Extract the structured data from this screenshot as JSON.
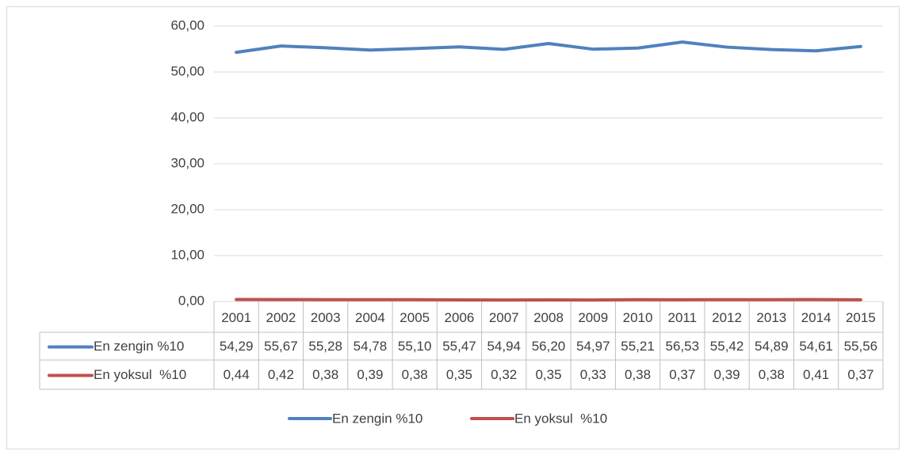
{
  "chart_data": {
    "type": "line",
    "categories": [
      "2001",
      "2002",
      "2003",
      "2004",
      "2005",
      "2006",
      "2007",
      "2008",
      "2009",
      "2010",
      "2011",
      "2012",
      "2013",
      "2014",
      "2015"
    ],
    "series": [
      {
        "name": "En zengin %10",
        "color": "#4f81bd",
        "values": [
          54.29,
          55.67,
          55.28,
          54.78,
          55.1,
          55.47,
          54.94,
          56.2,
          54.97,
          55.21,
          56.53,
          55.42,
          54.89,
          54.61,
          55.56
        ],
        "value_labels": [
          "54,29",
          "55,67",
          "55,28",
          "54,78",
          "55,10",
          "55,47",
          "54,94",
          "56,20",
          "54,97",
          "55,21",
          "56,53",
          "55,42",
          "54,89",
          "54,61",
          "55,56"
        ]
      },
      {
        "name": "En yoksul  %10",
        "color": "#c0504d",
        "values": [
          0.44,
          0.42,
          0.38,
          0.39,
          0.38,
          0.35,
          0.32,
          0.35,
          0.33,
          0.38,
          0.37,
          0.39,
          0.38,
          0.41,
          0.37
        ],
        "value_labels": [
          "0,44",
          "0,42",
          "0,38",
          "0,39",
          "0,38",
          "0,35",
          "0,32",
          "0,35",
          "0,33",
          "0,38",
          "0,37",
          "0,39",
          "0,38",
          "0,41",
          "0,37"
        ]
      }
    ],
    "ylim": [
      0,
      60
    ],
    "yticks": [
      {
        "value": 0,
        "label": "0,00"
      },
      {
        "value": 10,
        "label": "10,00"
      },
      {
        "value": 20,
        "label": "20,00"
      },
      {
        "value": 30,
        "label": "30,00"
      },
      {
        "value": 40,
        "label": "40,00"
      },
      {
        "value": 50,
        "label": "50,00"
      },
      {
        "value": 60,
        "label": "60,00"
      }
    ],
    "grid": true,
    "legend": "bottom",
    "data_table": true
  }
}
